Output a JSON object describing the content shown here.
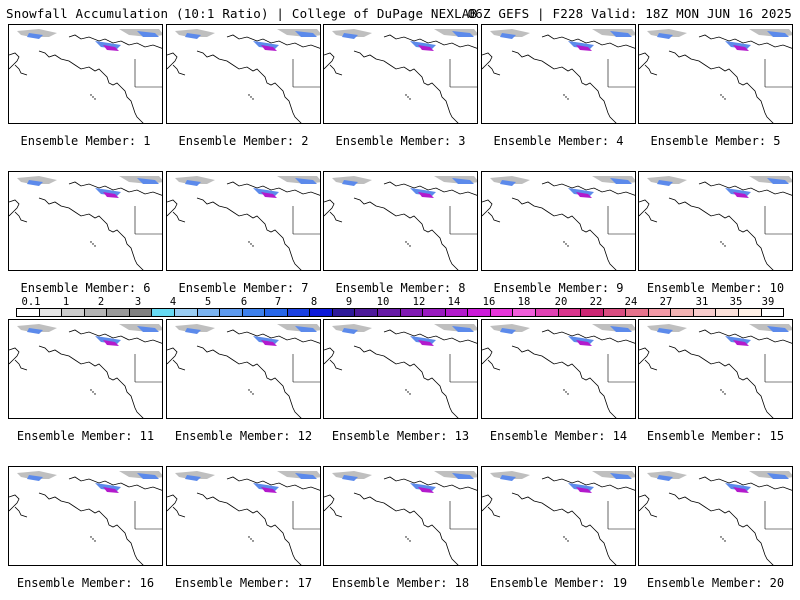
{
  "header": {
    "title_left": "Snowfall Accumulation (10:1 Ratio) | College of DuPage NEXLAB",
    "title_right": "06Z GEFS | F228 Valid: 18Z MON JUN 16 2025"
  },
  "panels": [
    {
      "label": "Ensemble Member: 1"
    },
    {
      "label": "Ensemble Member: 2"
    },
    {
      "label": "Ensemble Member: 3"
    },
    {
      "label": "Ensemble Member: 4"
    },
    {
      "label": "Ensemble Member: 5"
    },
    {
      "label": "Ensemble Member: 6"
    },
    {
      "label": "Ensemble Member: 7"
    },
    {
      "label": "Ensemble Member: 8"
    },
    {
      "label": "Ensemble Member: 9"
    },
    {
      "label": "Ensemble Member: 10"
    },
    {
      "label": "Ensemble Member: 11"
    },
    {
      "label": "Ensemble Member: 12"
    },
    {
      "label": "Ensemble Member: 13"
    },
    {
      "label": "Ensemble Member: 14"
    },
    {
      "label": "Ensemble Member: 15"
    },
    {
      "label": "Ensemble Member: 16"
    },
    {
      "label": "Ensemble Member: 17"
    },
    {
      "label": "Ensemble Member: 18"
    },
    {
      "label": "Ensemble Member: 19"
    },
    {
      "label": "Ensemble Member: 20"
    }
  ],
  "legend": {
    "tick_labels": [
      "0.1",
      "1",
      "2",
      "3",
      "4",
      "5",
      "6",
      "7",
      "8",
      "9",
      "10",
      "12",
      "14",
      "16",
      "18",
      "20",
      "22",
      "24",
      "27",
      "31",
      "35",
      "39"
    ],
    "colors": [
      "#ffffff",
      "#e6e6e6",
      "#cccccc",
      "#b3b3b3",
      "#999999",
      "#808080",
      "#66d9f2",
      "#99ccf2",
      "#7ab3f0",
      "#5c99ed",
      "#3d80eb",
      "#2666e8",
      "#1a40e0",
      "#0d1ad9",
      "#2e1a99",
      "#4d1a99",
      "#661aa6",
      "#801ab3",
      "#991abf",
      "#b31acc",
      "#cc1ad9",
      "#e633d9",
      "#f05cd9",
      "#e040b3",
      "#d9338c",
      "#cc2673",
      "#d94d80",
      "#e6738c",
      "#f299a6",
      "#f2b3b3",
      "#f7cccc",
      "#fbe0d9",
      "#fff0e6",
      "#ffffff"
    ]
  }
}
